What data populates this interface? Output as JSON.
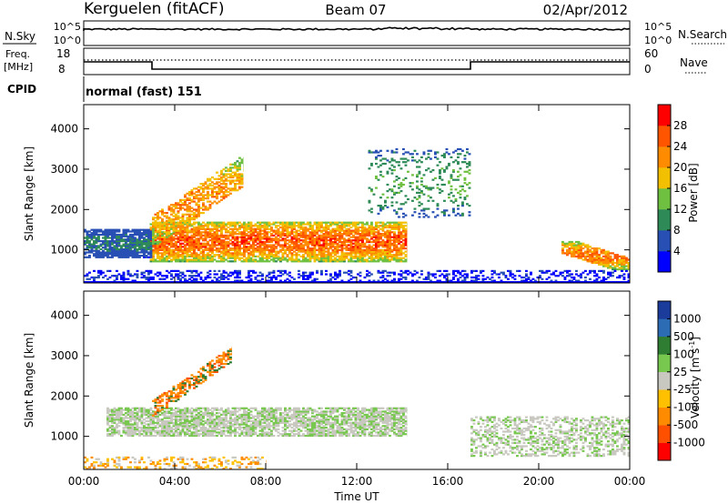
{
  "header": {
    "site": "Kerguelen (fitACF)",
    "beam": "Beam 07",
    "date": "02/Apr/2012"
  },
  "noise_panel": {
    "left_label": "N.Sky",
    "left_ticks": [
      "10^5",
      "10^0"
    ],
    "right_ticks": [
      "10^5",
      "10^0"
    ],
    "right_label": "N.Search"
  },
  "freq_panel": {
    "left_label_line1": "Freq.",
    "left_label_line2": "[MHz]",
    "left_ticks": [
      "18",
      "8"
    ],
    "right_ticks": [
      "60",
      "0"
    ],
    "right_label": "Nave"
  },
  "cpid_panel": {
    "label": "CPID",
    "mode": "normal (fast) 151"
  },
  "colors": {
    "power": [
      "#0000ff",
      "#2850b4",
      "#2e8b57",
      "#6fc040",
      "#f2c000",
      "#ff8c00",
      "#ff5500",
      "#ff0000"
    ],
    "velocity": [
      "#1c3c9c",
      "#2c6cb4",
      "#2e7d32",
      "#78c850",
      "#c8c8c0",
      "#ffc000",
      "#ff8c00",
      "#ff5000",
      "#ff0000"
    ],
    "ground": "#c8c8c0"
  },
  "chart_data": [
    {
      "type": "heatmap",
      "title": "",
      "xlabel": "Time UT",
      "ylabel": "Slant Range [km]",
      "x_ticks": [
        "00:00",
        "04:00",
        "08:00",
        "12:00",
        "16:00",
        "20:00",
        "00:00"
      ],
      "xlim_hours": [
        0,
        24
      ],
      "y_ticks": [
        "4000",
        "3000",
        "2000",
        "1000"
      ],
      "ylim": [
        180,
        4600
      ],
      "colorbar": {
        "label": "Power [dB]",
        "ticks": [
          "28",
          "24",
          "20",
          "16",
          "12",
          "8",
          "4"
        ],
        "range": [
          0,
          32
        ]
      },
      "features": [
        {
          "name": "main F-region band",
          "t_start": 2.9,
          "t_end": 14.2,
          "range_start": 700,
          "range_end": 1700,
          "peak_db": 30
        },
        {
          "name": "early echoes",
          "t_start": 0.0,
          "t_end": 3.0,
          "range_start": 800,
          "range_end": 1500,
          "peak_db": 10
        },
        {
          "name": "lifting arc 04-07 UT",
          "t_start": 3.0,
          "t_end": 7.0,
          "range_start": 1100,
          "range_end": 3300,
          "peak_db": 26
        },
        {
          "name": "late sparse echoes",
          "t_start": 12.5,
          "t_end": 17.0,
          "range_start": 1800,
          "range_end": 3500,
          "peak_db": 14
        },
        {
          "name": "evening descending band",
          "t_start": 21.0,
          "t_end": 24.0,
          "range_start": 500,
          "range_end": 1200,
          "peak_db": 28
        },
        {
          "name": "near-range clutter",
          "t_start": 0.0,
          "t_end": 24.0,
          "range_start": 180,
          "range_end": 500,
          "peak_db": 6
        }
      ]
    },
    {
      "type": "heatmap",
      "title": "",
      "xlabel": "Time UT",
      "ylabel": "Slant Range [km]",
      "x_ticks": [
        "00:00",
        "04:00",
        "08:00",
        "12:00",
        "16:00",
        "20:00",
        "00:00"
      ],
      "xlim_hours": [
        0,
        24
      ],
      "y_ticks": [
        "4000",
        "3000",
        "2000",
        "1000"
      ],
      "ylim": [
        180,
        4600
      ],
      "colorbar": {
        "label": "Velocity [m s^-1]",
        "ticks": [
          "1000",
          "500",
          "100",
          "25",
          "-25",
          "-100",
          "-500",
          "-1000"
        ],
        "range": [
          -1200,
          1200
        ]
      },
      "features": [
        {
          "name": "ground scatter band",
          "t_start": 1.0,
          "t_end": 14.2,
          "range_start": 1000,
          "range_end": 1700,
          "velocity": 0
        },
        {
          "name": "early positive arcs",
          "t_start": 3.0,
          "t_end": 6.5,
          "range_start": 1500,
          "range_end": 3200,
          "velocity": -300
        },
        {
          "name": "late ground scatter",
          "t_start": 17.0,
          "t_end": 24.0,
          "range_start": 500,
          "range_end": 1500,
          "velocity": 0
        },
        {
          "name": "near-range echoes",
          "t_start": 0.0,
          "t_end": 8.0,
          "range_start": 180,
          "range_end": 500,
          "velocity": -150
        }
      ]
    }
  ]
}
